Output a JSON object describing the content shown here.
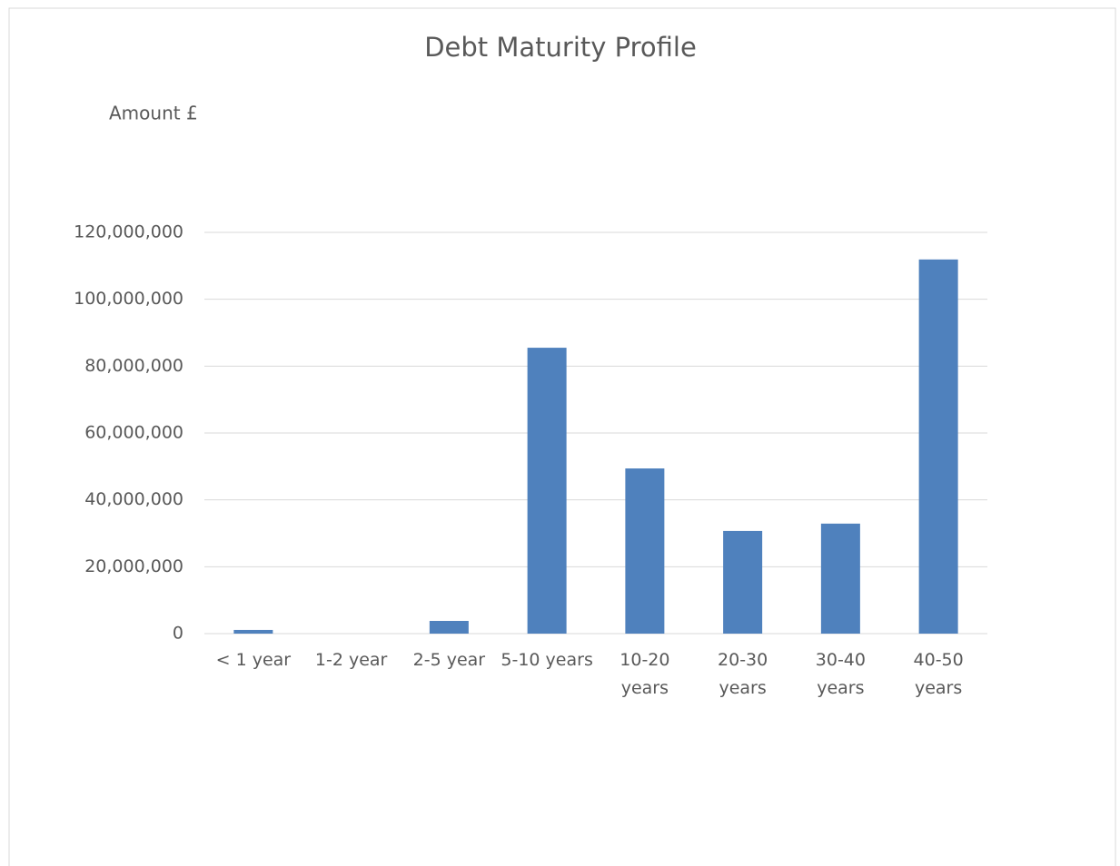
{
  "chart_data": {
    "type": "bar",
    "title": "Debt Maturity Profile",
    "y_label": "Amount £",
    "categories": [
      "< 1 year",
      "1-2 year",
      "2-5 year",
      "5-10 years",
      "10-20 years",
      "20-30 years",
      "30-40 years",
      "40-50 years"
    ],
    "values": [
      1100000,
      0,
      3800000,
      85500000,
      49400000,
      30700000,
      32900000,
      111900000
    ],
    "color": "#4f81bd",
    "ylim": [
      0,
      120000000
    ],
    "yticks": [
      0,
      {
        "value": 20000000,
        "label": "20,000,000"
      },
      {
        "value": 40000000,
        "label": "40,000,000"
      },
      {
        "value": 60000000,
        "label": "60,000,000"
      },
      {
        "value": 80000000,
        "label": "80,000,000"
      },
      {
        "value": 100000000,
        "label": "100,000,000"
      },
      {
        "value": 120000000,
        "label": "120,000,000"
      }
    ],
    "grid": true
  }
}
